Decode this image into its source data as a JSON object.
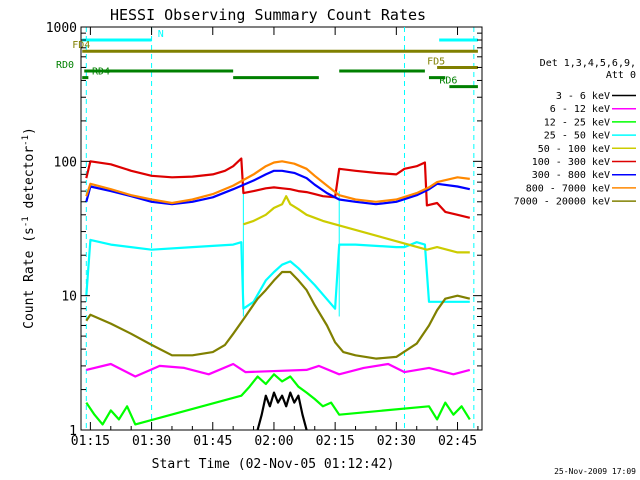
{
  "chart_data": {
    "type": "line",
    "title": "HESSI Observing Summary Count Rates",
    "xlabel": "Start Time (02-Nov-05 01:12:42)",
    "ylabel": "Count Rate (s⁻¹ detector⁻¹)",
    "ylabel_parts": {
      "main": "Count Rate (s",
      "exp1": "-1",
      "mid": " detector",
      "exp2": "-1",
      "end": ")"
    },
    "y_scale": "log",
    "ylim": [
      1,
      1000
    ],
    "xlim_minutes": [
      72.7,
      171
    ],
    "x_ticks": [
      {
        "minute": 75,
        "label": "01:15"
      },
      {
        "minute": 90,
        "label": "01:30"
      },
      {
        "minute": 105,
        "label": "01:45"
      },
      {
        "minute": 120,
        "label": "02:00"
      },
      {
        "minute": 135,
        "label": "02:15"
      },
      {
        "minute": 150,
        "label": "02:30"
      },
      {
        "minute": 165,
        "label": "02:45"
      }
    ],
    "y_ticks": [
      {
        "value": 1,
        "label": "1"
      },
      {
        "value": 10,
        "label": "10"
      },
      {
        "value": 100,
        "label": "100"
      },
      {
        "value": 1000,
        "label": "1000"
      }
    ],
    "legend_title": [
      "Det 1,3,4,5,6,9,",
      "Att 0"
    ],
    "legend_placement": "right",
    "series": [
      {
        "name": "3 - 6 keV",
        "color": "#000000",
        "x": [
          116,
          117,
          118,
          119,
          120,
          121,
          122,
          123,
          124,
          125,
          126,
          127,
          128
        ],
        "y": [
          1.0,
          1.3,
          1.8,
          1.5,
          1.9,
          1.6,
          1.8,
          1.5,
          1.9,
          1.6,
          1.8,
          1.3,
          1.0
        ]
      },
      {
        "name": "6 - 12 keV",
        "color": "#ff00ff",
        "x": [
          74,
          80,
          86,
          92,
          98,
          104,
          110,
          113,
          128,
          131,
          136,
          142,
          148,
          152,
          158,
          164,
          168
        ],
        "y": [
          2.8,
          3.1,
          2.5,
          3.0,
          2.9,
          2.6,
          3.1,
          2.7,
          2.8,
          3.0,
          2.6,
          2.9,
          3.1,
          2.7,
          2.9,
          2.6,
          2.8
        ]
      },
      {
        "name": "12 - 25 keV",
        "color": "#00ff00",
        "x": [
          74,
          76,
          78,
          80,
          82,
          84,
          86,
          112,
          114,
          116,
          118,
          120,
          122,
          124,
          126,
          128,
          130,
          132,
          134,
          136,
          158,
          160,
          162,
          164,
          166,
          168
        ],
        "y": [
          1.6,
          1.3,
          1.1,
          1.4,
          1.2,
          1.5,
          1.1,
          1.8,
          2.1,
          2.5,
          2.2,
          2.6,
          2.3,
          2.5,
          2.1,
          1.9,
          1.7,
          1.5,
          1.6,
          1.3,
          1.5,
          1.2,
          1.6,
          1.3,
          1.5,
          1.2
        ]
      },
      {
        "name": "25 - 50 keV",
        "color": "#00ffff",
        "x": [
          74,
          75,
          80,
          90,
          100,
          110,
          112,
          112.5,
          115,
          118,
          120,
          122,
          124,
          126,
          130,
          135,
          136,
          140,
          150,
          152,
          155,
          157,
          158,
          160,
          165,
          168
        ],
        "y": [
          10,
          26,
          24,
          22,
          23,
          24,
          25,
          8,
          9,
          13,
          15,
          17,
          18,
          16,
          12,
          8,
          24,
          24,
          23,
          23,
          25,
          24,
          9,
          9,
          9,
          9
        ]
      },
      {
        "name": "50 - 100 keV",
        "color": "#cccc00",
        "x": [
          112.5,
          115,
          118,
          120,
          122,
          123,
          124,
          126,
          128,
          130,
          132,
          135,
          157.5,
          160,
          165,
          168
        ],
        "y": [
          34,
          36,
          40,
          45,
          48,
          55,
          48,
          44,
          40,
          38,
          36,
          34,
          22,
          23,
          21,
          21
        ]
      },
      {
        "name": "100 - 300 keV",
        "color": "#dd0000",
        "x": [
          74,
          75,
          80,
          85,
          90,
          95,
          100,
          105,
          108,
          110,
          112,
          112.5,
          115,
          118,
          120,
          122,
          124,
          126,
          128,
          130,
          132,
          135,
          136,
          140,
          145,
          150,
          152,
          155,
          157,
          157.5,
          160,
          162,
          165,
          168
        ],
        "y": [
          75,
          100,
          95,
          85,
          78,
          76,
          77,
          80,
          85,
          92,
          105,
          58,
          60,
          63,
          64,
          63,
          62,
          60,
          59,
          57,
          55,
          54,
          88,
          85,
          82,
          80,
          88,
          92,
          98,
          47,
          49,
          42,
          40,
          38
        ]
      },
      {
        "name": "300 - 800 keV",
        "color": "#0000ff",
        "x": [
          74,
          75,
          80,
          85,
          90,
          95,
          100,
          105,
          110,
          115,
          118,
          120,
          122,
          125,
          128,
          130,
          133,
          136,
          140,
          145,
          150,
          155,
          158,
          160,
          165,
          168
        ],
        "y": [
          50,
          65,
          60,
          55,
          50,
          48,
          50,
          54,
          62,
          72,
          80,
          85,
          85,
          82,
          75,
          67,
          58,
          52,
          50,
          48,
          50,
          56,
          62,
          68,
          65,
          62
        ]
      },
      {
        "name": "800 - 7000 keV",
        "color": "#ff8800",
        "x": [
          74,
          75,
          80,
          85,
          90,
          95,
          100,
          105,
          110,
          115,
          118,
          120,
          122,
          125,
          128,
          130,
          133,
          136,
          140,
          145,
          150,
          155,
          158,
          160,
          165,
          168
        ],
        "y": [
          55,
          68,
          62,
          56,
          52,
          49,
          52,
          57,
          66,
          80,
          92,
          98,
          100,
          96,
          88,
          78,
          66,
          56,
          52,
          50,
          52,
          58,
          64,
          70,
          76,
          74
        ]
      },
      {
        "name": "7000 - 20000 keV",
        "color": "#808000",
        "x": [
          74,
          75,
          80,
          85,
          90,
          95,
          100,
          105,
          108,
          110,
          113,
          116,
          118,
          120,
          122,
          124,
          126,
          128,
          130,
          133,
          135,
          137,
          140,
          145,
          150,
          155,
          158,
          160,
          162,
          165,
          168
        ],
        "y": [
          6.5,
          7.2,
          6.2,
          5.2,
          4.3,
          3.6,
          3.6,
          3.8,
          4.3,
          5.2,
          7,
          9.5,
          11,
          13,
          15,
          15,
          13,
          11,
          8.5,
          6,
          4.5,
          3.8,
          3.6,
          3.4,
          3.5,
          4.4,
          6,
          7.8,
          9.5,
          10,
          9.5
        ]
      }
    ],
    "state_bars": [
      {
        "label": "N",
        "color": "#00ffff",
        "level": 800,
        "segments": [
          [
            73,
            90
          ],
          [
            160.5,
            170
          ]
        ]
      },
      {
        "label": "FD4",
        "color": "#808000",
        "level": 660,
        "segments": [
          [
            73,
            170
          ]
        ]
      },
      {
        "label": "FD5",
        "color": "#808000",
        "level": 500,
        "segments": [
          [
            160,
            170
          ]
        ]
      },
      {
        "label": "RD0",
        "color": "#008000",
        "level": 470,
        "segments": [
          [
            73.5,
            110
          ],
          [
            136,
            157
          ]
        ]
      },
      {
        "label": "RD4",
        "color": "#008000",
        "level": 420,
        "segments": [
          [
            73,
            74.5
          ],
          [
            110,
            131
          ],
          [
            158,
            162
          ]
        ]
      },
      {
        "label": "RD6",
        "color": "#008000",
        "level": 360,
        "segments": [
          [
            163,
            170
          ]
        ]
      }
    ],
    "dashed_markers_minutes": [
      74,
      90,
      152,
      169
    ],
    "solid_markers_minutes": [
      112.5,
      136
    ]
  },
  "footer": {
    "timestamp": "25-Nov-2009 17:09"
  }
}
